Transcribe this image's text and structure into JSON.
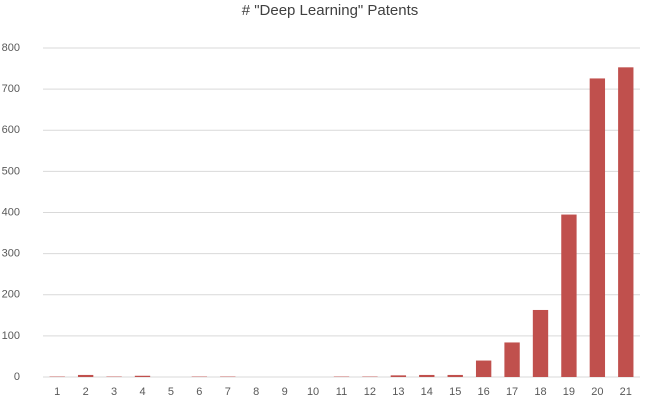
{
  "chart_data": {
    "type": "bar",
    "title": "# \"Deep Learning\" Patents",
    "categories": [
      "1",
      "2",
      "3",
      "4",
      "5",
      "6",
      "7",
      "8",
      "9",
      "10",
      "11",
      "12",
      "13",
      "14",
      "15",
      "16",
      "17",
      "18",
      "19",
      "20",
      "21"
    ],
    "values": [
      1,
      5,
      1,
      3,
      0,
      1,
      1,
      0,
      0,
      0,
      1,
      1,
      4,
      5,
      5,
      40,
      84,
      163,
      395,
      726,
      753
    ],
    "color": "#c0504d",
    "ylim": [
      0,
      800
    ],
    "yticks": [
      0,
      100,
      200,
      300,
      400,
      500,
      600,
      700,
      800
    ],
    "grid": true
  }
}
